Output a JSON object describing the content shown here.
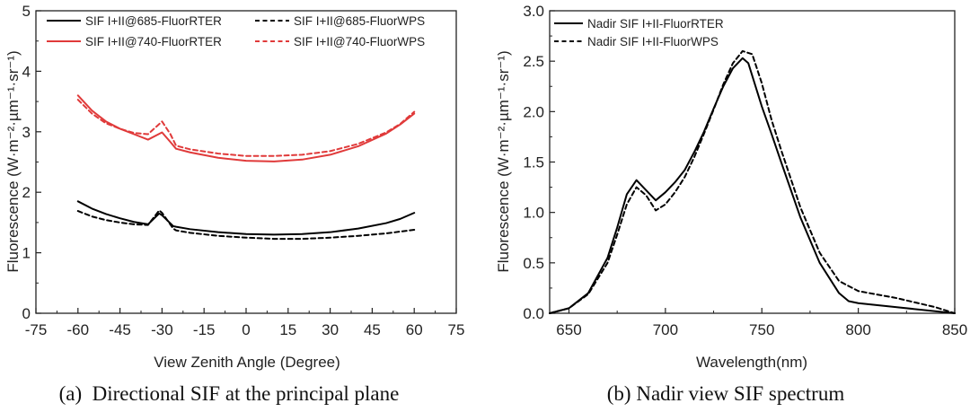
{
  "chart_data": [
    {
      "type": "line",
      "caption": "(a)  Directional SIF at the principal plane",
      "xlabel": "View Zenith Angle (Degree)",
      "ylabel": "Fluorescence (W·m⁻²·µm⁻¹·sr⁻¹)",
      "xlim": [
        -75,
        75
      ],
      "ylim": [
        0,
        5
      ],
      "xticks": [
        "-75",
        "-60",
        "-45",
        "-30",
        "-15",
        "0",
        "15",
        "30",
        "45",
        "60",
        "75"
      ],
      "xtick_values": [
        -75,
        -60,
        -45,
        -30,
        -15,
        0,
        15,
        30,
        45,
        60,
        75
      ],
      "yticks": [
        "0",
        "1",
        "2",
        "3",
        "4",
        "5"
      ],
      "ytick_values": [
        0,
        1,
        2,
        3,
        4,
        5
      ],
      "series": [
        {
          "name": "SIF I+II@685-FluorRTER",
          "color": "#000000",
          "dash": "solid",
          "x": [
            -60,
            -55,
            -50,
            -45,
            -40,
            -35,
            -31,
            -30,
            -26,
            -25,
            -20,
            -10,
            0,
            10,
            20,
            30,
            40,
            50,
            55,
            60
          ],
          "y": [
            1.85,
            1.73,
            1.64,
            1.57,
            1.51,
            1.47,
            1.65,
            1.62,
            1.44,
            1.43,
            1.39,
            1.34,
            1.31,
            1.3,
            1.31,
            1.34,
            1.4,
            1.49,
            1.56,
            1.66
          ]
        },
        {
          "name": "SIF I+II@685-FluorWPS",
          "color": "#000000",
          "dash": "dashed",
          "x": [
            -60,
            -55,
            -50,
            -45,
            -40,
            -35,
            -31,
            -30,
            -26,
            -25,
            -20,
            -10,
            0,
            10,
            20,
            30,
            40,
            50,
            55,
            60
          ],
          "y": [
            1.69,
            1.6,
            1.54,
            1.5,
            1.47,
            1.46,
            1.7,
            1.66,
            1.4,
            1.37,
            1.33,
            1.28,
            1.25,
            1.23,
            1.23,
            1.25,
            1.28,
            1.32,
            1.35,
            1.38
          ]
        },
        {
          "name": "SIF I+II@740-FluorRTER",
          "color": "#e03a3a",
          "dash": "solid",
          "x": [
            -60,
            -55,
            -50,
            -45,
            -40,
            -35,
            -30,
            -27,
            -25,
            -20,
            -10,
            0,
            10,
            20,
            30,
            40,
            50,
            55,
            60
          ],
          "y": [
            3.6,
            3.35,
            3.17,
            3.05,
            2.96,
            2.87,
            2.99,
            2.83,
            2.72,
            2.66,
            2.57,
            2.52,
            2.51,
            2.54,
            2.62,
            2.76,
            2.97,
            3.12,
            3.3
          ]
        },
        {
          "name": "SIF I+II@740-FluorWPS",
          "color": "#e03a3a",
          "dash": "dashed",
          "x": [
            -60,
            -55,
            -50,
            -45,
            -40,
            -35,
            -30,
            -27,
            -25,
            -20,
            -10,
            0,
            10,
            20,
            30,
            40,
            50,
            55,
            60
          ],
          "y": [
            3.53,
            3.3,
            3.14,
            3.05,
            2.98,
            2.96,
            3.17,
            2.96,
            2.77,
            2.71,
            2.64,
            2.6,
            2.6,
            2.62,
            2.68,
            2.8,
            2.99,
            3.13,
            3.33
          ]
        }
      ]
    },
    {
      "type": "line",
      "caption": "(b) Nadir view SIF spectrum",
      "xlabel": "Wavelength(nm)",
      "ylabel": "Fluorescence (W·m⁻²·µm⁻¹·sr⁻¹)",
      "xlim": [
        640,
        850
      ],
      "ylim": [
        0,
        3.0
      ],
      "xticks": [
        "650",
        "700",
        "750",
        "800",
        "850"
      ],
      "xtick_values": [
        650,
        700,
        750,
        800,
        850
      ],
      "yticks": [
        "0.0",
        "0.5",
        "1.0",
        "1.5",
        "2.0",
        "2.5",
        "3.0"
      ],
      "ytick_values": [
        0,
        0.5,
        1.0,
        1.5,
        2.0,
        2.5,
        3.0
      ],
      "series": [
        {
          "name": "Nadir SIF I+II-FluorRTER",
          "color": "#000000",
          "dash": "solid",
          "x": [
            640,
            650,
            660,
            670,
            675,
            680,
            685,
            690,
            695,
            700,
            705,
            710,
            715,
            720,
            725,
            730,
            735,
            740,
            743,
            750,
            755,
            760,
            770,
            780,
            790,
            795,
            800,
            820,
            840,
            850
          ],
          "y": [
            0.0,
            0.05,
            0.2,
            0.55,
            0.85,
            1.18,
            1.32,
            1.22,
            1.12,
            1.2,
            1.3,
            1.42,
            1.6,
            1.8,
            2.03,
            2.25,
            2.43,
            2.53,
            2.48,
            2.05,
            1.78,
            1.5,
            0.95,
            0.5,
            0.2,
            0.12,
            0.1,
            0.06,
            0.02,
            0.0
          ]
        },
        {
          "name": "Nadir SIF I+II-FluorWPS",
          "color": "#000000",
          "dash": "dashed",
          "x": [
            640,
            650,
            660,
            670,
            675,
            680,
            685,
            690,
            695,
            700,
            705,
            710,
            715,
            720,
            725,
            730,
            735,
            740,
            745,
            750,
            755,
            760,
            770,
            780,
            790,
            800,
            820,
            840,
            850
          ],
          "y": [
            0.0,
            0.05,
            0.19,
            0.5,
            0.78,
            1.08,
            1.25,
            1.17,
            1.02,
            1.08,
            1.2,
            1.35,
            1.55,
            1.78,
            2.02,
            2.27,
            2.48,
            2.6,
            2.57,
            2.28,
            1.92,
            1.62,
            1.05,
            0.6,
            0.32,
            0.22,
            0.15,
            0.06,
            0.0
          ]
        }
      ]
    }
  ]
}
